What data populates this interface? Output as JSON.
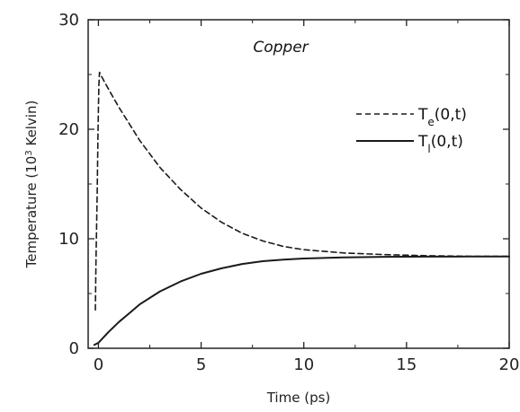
{
  "chart_data": {
    "type": "line",
    "title": "",
    "annotation": "Copper",
    "xlabel": "Time (ps)",
    "ylabel_prefix": "Temperature (10",
    "ylabel_sup": "3",
    "ylabel_suffix": " Kelvin)",
    "xlim": [
      -0.5,
      20
    ],
    "ylim": [
      0,
      30
    ],
    "xticks": [
      0,
      5,
      10,
      15,
      20
    ],
    "yticks": [
      0,
      10,
      20,
      30
    ],
    "grid": false,
    "legend_position": "top-right",
    "series": [
      {
        "name_main": "T",
        "name_sub": "e",
        "name_args": "(0,t)",
        "style": "dashed",
        "color": "#1a1a1a",
        "x": [
          -0.15,
          -0.12,
          -0.06,
          -0.02,
          0.02,
          0.05,
          0.1,
          0.3,
          0.6,
          1.0,
          1.5,
          2.0,
          3.0,
          4.0,
          5.0,
          6.0,
          7.0,
          8.0,
          9.0,
          10.0,
          12.0,
          14.0,
          16.0,
          18.0,
          20.0
        ],
        "y": [
          3.5,
          8.0,
          14.0,
          20.0,
          24.0,
          25.2,
          25.0,
          24.3,
          23.3,
          22.0,
          20.5,
          19.0,
          16.5,
          14.5,
          12.8,
          11.5,
          10.5,
          9.8,
          9.3,
          9.0,
          8.7,
          8.55,
          8.45,
          8.4,
          8.4
        ]
      },
      {
        "name_main": "T",
        "name_sub": "l",
        "name_args": "(0,t)",
        "style": "solid",
        "color": "#1a1a1a",
        "x": [
          -0.2,
          0,
          0.5,
          1.0,
          1.5,
          2.0,
          3.0,
          4.0,
          5.0,
          6.0,
          7.0,
          8.0,
          9.0,
          10.0,
          12.0,
          14.0,
          16.0,
          18.0,
          20.0
        ],
        "y": [
          0.3,
          0.5,
          1.5,
          2.4,
          3.2,
          4.0,
          5.2,
          6.1,
          6.8,
          7.3,
          7.7,
          7.95,
          8.1,
          8.2,
          8.3,
          8.35,
          8.37,
          8.38,
          8.38
        ]
      }
    ]
  }
}
